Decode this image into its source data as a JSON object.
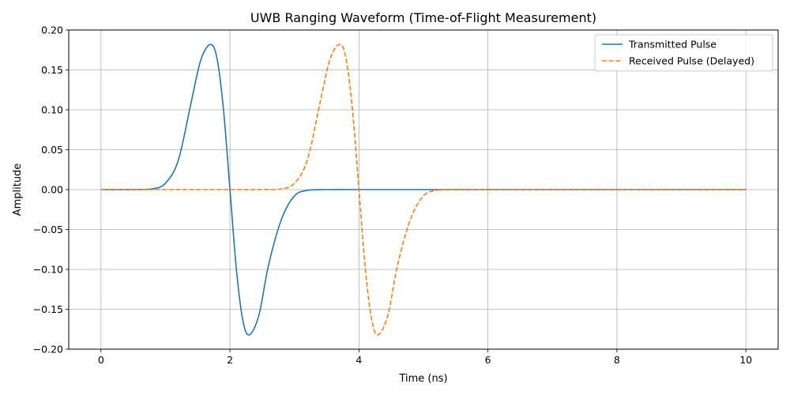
{
  "chart_data": {
    "type": "line",
    "title": "UWB Ranging Waveform (Time-of-Flight Measurement)",
    "xlabel": "Time (ns)",
    "ylabel": "Amplitude",
    "xlim": [
      -0.5,
      10.5
    ],
    "ylim": [
      -0.2,
      0.2
    ],
    "grid": true,
    "legend_position": "top-right",
    "x_ticks": [
      0,
      2,
      4,
      6,
      8,
      10
    ],
    "x_tick_labels": [
      "0",
      "2",
      "4",
      "6",
      "8",
      "10"
    ],
    "y_ticks": [
      -0.2,
      -0.15,
      -0.1,
      -0.05,
      0.0,
      0.05,
      0.1,
      0.15,
      0.2
    ],
    "y_tick_labels": [
      "−0.20",
      "−0.15",
      "−0.10",
      "−0.05",
      "0.00",
      "0.05",
      "0.10",
      "0.15",
      "0.20"
    ],
    "series": [
      {
        "name": "Transmitted Pulse",
        "color": "#1f77b4",
        "style": "solid",
        "x": [
          0,
          0.5,
          0.8,
          1.0,
          1.2,
          1.4,
          1.55,
          1.7,
          1.8,
          1.9,
          2.0,
          2.1,
          2.2,
          2.3,
          2.45,
          2.6,
          2.8,
          3.0,
          3.2,
          3.5,
          4.0,
          5.0,
          6.0,
          8.0,
          10.0
        ],
        "y": [
          0.0,
          0.0,
          0.001,
          0.008,
          0.037,
          0.11,
          0.163,
          0.182,
          0.164,
          0.1,
          0.0,
          -0.1,
          -0.164,
          -0.182,
          -0.157,
          -0.094,
          -0.037,
          -0.008,
          -0.001,
          0.0,
          0.0,
          0.0,
          0.0,
          0.0,
          0.0
        ]
      },
      {
        "name": "Received Pulse (Delayed)",
        "color": "#ff7f0e",
        "style": "dashed",
        "x": [
          0,
          2.0,
          2.5,
          2.8,
          3.0,
          3.2,
          3.4,
          3.55,
          3.7,
          3.8,
          3.9,
          4.0,
          4.1,
          4.2,
          4.3,
          4.45,
          4.6,
          4.8,
          5.0,
          5.2,
          5.5,
          6.0,
          8.0,
          10.0
        ],
        "y": [
          0.0,
          0.0,
          0.0,
          0.001,
          0.008,
          0.037,
          0.11,
          0.163,
          0.182,
          0.164,
          0.1,
          0.0,
          -0.1,
          -0.164,
          -0.182,
          -0.157,
          -0.094,
          -0.037,
          -0.008,
          -0.001,
          0.0,
          0.0,
          0.0,
          0.0
        ]
      }
    ]
  }
}
